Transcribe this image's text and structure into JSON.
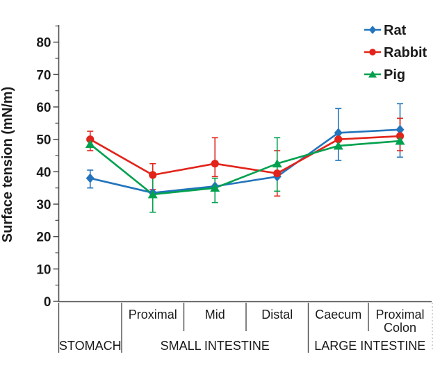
{
  "figure": {
    "background_color": "#ffffff",
    "axis_line_color": "#4d4d4d",
    "text_color": "#1a1a1a"
  },
  "chart_data": {
    "type": "line",
    "title": "",
    "xlabel": "",
    "ylabel": "Surface tension (mN/m)",
    "ylim": [
      0,
      86
    ],
    "yticks": [
      0,
      10,
      20,
      30,
      40,
      50,
      60,
      70,
      80
    ],
    "y_minor_tick_step": 5,
    "grid": false,
    "legend_position": "top-right",
    "x_categories": [
      {
        "lines": []
      },
      {
        "lines": [
          "Proximal"
        ]
      },
      {
        "lines": [
          "Mid"
        ]
      },
      {
        "lines": [
          "Distal"
        ]
      },
      {
        "lines": [
          "Caecum"
        ]
      },
      {
        "lines": [
          "Proximal",
          "Colon"
        ]
      }
    ],
    "x_groups": [
      {
        "label": "STOMACH",
        "from": 0,
        "to": 0
      },
      {
        "label": "SMALL INTESTINE",
        "from": 1,
        "to": 3
      },
      {
        "label": "LARGE INTESTINE",
        "from": 4,
        "to": 5
      }
    ],
    "series": [
      {
        "name": "Rat",
        "marker": "diamond",
        "color": "#2374BC",
        "values": [
          38,
          33.5,
          35.5,
          38.5,
          52,
          53
        ],
        "err_up": [
          2.5,
          0,
          0,
          0,
          7.5,
          8
        ],
        "err_down": [
          3,
          0,
          0,
          0,
          8.5,
          8.5
        ]
      },
      {
        "name": "Rabbit",
        "marker": "circle",
        "color": "#E2231A",
        "values": [
          50,
          39,
          42.5,
          39.5,
          50,
          51
        ],
        "err_up": [
          2.5,
          3.5,
          8,
          7,
          0,
          5.5
        ],
        "err_down": [
          3.5,
          4.5,
          4,
          7,
          0,
          4.5
        ]
      },
      {
        "name": "Pig",
        "marker": "triangle",
        "color": "#00A14E",
        "values": [
          48.5,
          33,
          35,
          42.5,
          48,
          49.5
        ],
        "err_up": [
          0,
          6,
          3,
          8,
          0,
          0
        ],
        "err_down": [
          0,
          5.5,
          4.5,
          8.5,
          0,
          0
        ]
      }
    ]
  }
}
